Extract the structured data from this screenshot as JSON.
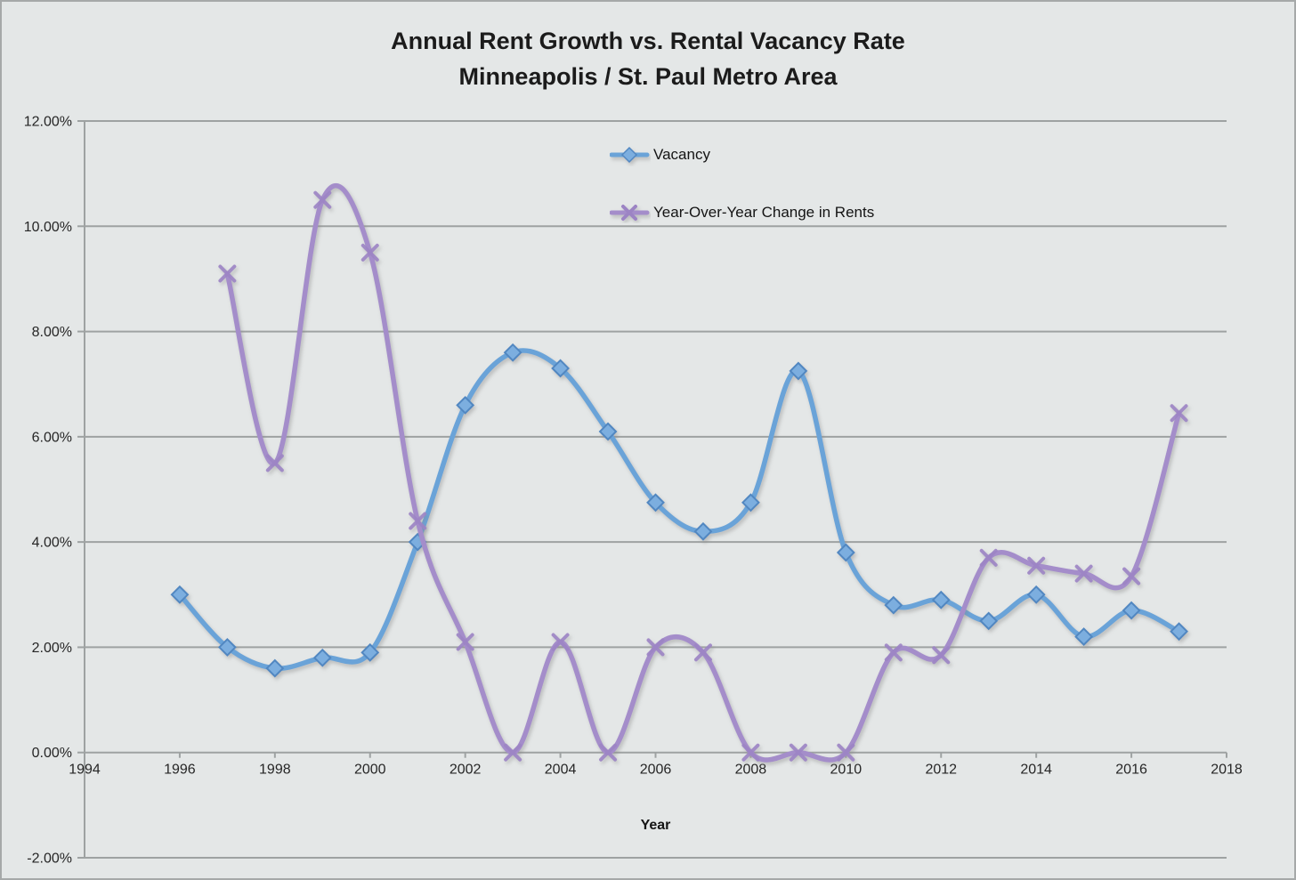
{
  "figure": {
    "background": "#E4E7E7",
    "border_color": "#A6A9A9"
  },
  "chart": {
    "title_line1": "Annual Rent Growth vs. Rental Vacancy Rate",
    "title_line2": "Minneapolis / St. Paul Metro Area"
  },
  "chart_data": {
    "type": "line",
    "title": "Annual Rent Growth vs. Rental Vacancy Rate - Minneapolis / St. Paul Metro Area",
    "xlabel": "Year",
    "ylabel": "",
    "xlim": [
      1994,
      2018
    ],
    "ylim": [
      -2,
      12
    ],
    "grid": true,
    "grid_color": "#9EA2A2",
    "legend_position": "inside-top-center",
    "x_ticks": [
      1994,
      1996,
      1998,
      2000,
      2002,
      2004,
      2006,
      2008,
      2010,
      2012,
      2014,
      2016,
      2018
    ],
    "y_ticks": [
      {
        "value": 12,
        "label": "12.00%"
      },
      {
        "value": 10,
        "label": "10.00%"
      },
      {
        "value": 8,
        "label": "8.00%"
      },
      {
        "value": 6,
        "label": "6.00%"
      },
      {
        "value": 4,
        "label": "4.00%"
      },
      {
        "value": 2,
        "label": "2.00%"
      },
      {
        "value": 0,
        "label": "0.00%"
      },
      {
        "value": -2,
        "label": "-2.00%"
      }
    ],
    "series": [
      {
        "name": "Vacancy",
        "marker": "diamond",
        "color": "#6AA3D8",
        "marker_fill": "#7BAEDF",
        "marker_stroke": "#5187C1",
        "x": [
          1996,
          1997,
          1998,
          1999,
          2000,
          2001,
          2002,
          2003,
          2004,
          2005,
          2006,
          2007,
          2008,
          2009,
          2010,
          2011,
          2012,
          2013,
          2014,
          2015,
          2016,
          2017
        ],
        "values": [
          3.0,
          2.0,
          1.6,
          1.8,
          1.9,
          4.0,
          6.6,
          7.6,
          7.3,
          6.1,
          4.75,
          4.2,
          4.75,
          7.25,
          3.8,
          2.8,
          2.9,
          2.5,
          3.0,
          2.2,
          2.7,
          2.3
        ]
      },
      {
        "name": "Year-Over-Year Change in Rents",
        "marker": "x",
        "color": "#A48DCA",
        "marker_fill": "none",
        "marker_stroke": "#9C84C4",
        "x": [
          1997,
          1998,
          1999,
          2000,
          2001,
          2002,
          2003,
          2004,
          2005,
          2006,
          2007,
          2008,
          2009,
          2010,
          2011,
          2012,
          2013,
          2014,
          2015,
          2016,
          2017
        ],
        "values": [
          9.1,
          5.5,
          10.5,
          9.5,
          4.4,
          2.1,
          0.0,
          2.1,
          0.0,
          2.0,
          1.9,
          0.0,
          0.0,
          0.0,
          1.9,
          1.85,
          3.7,
          3.55,
          3.4,
          3.35,
          6.45
        ]
      }
    ]
  }
}
